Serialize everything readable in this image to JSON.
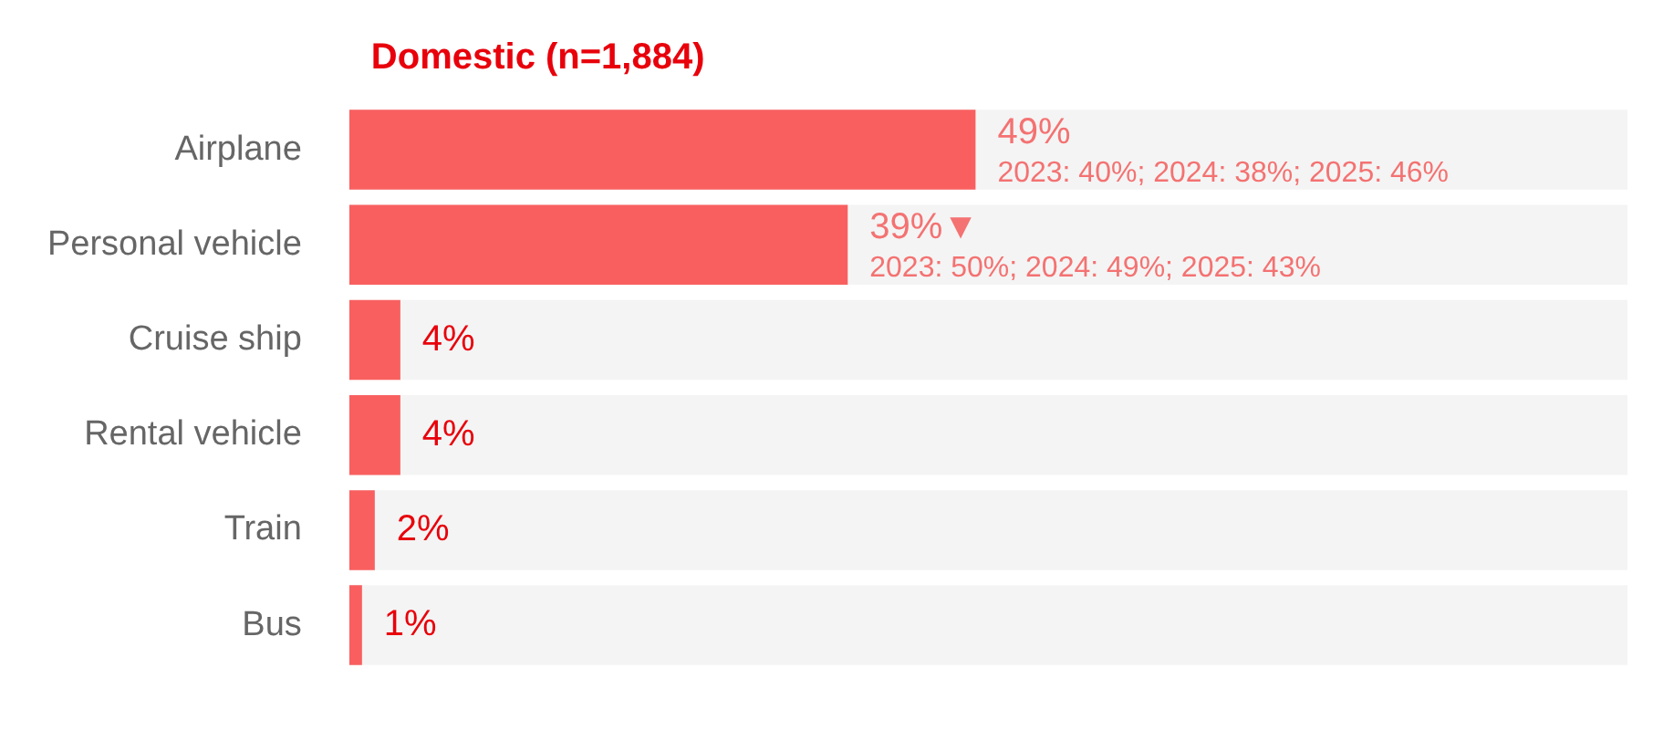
{
  "chart_data": {
    "type": "bar",
    "orientation": "horizontal",
    "title": "Domestic (n=1,884)",
    "categories": [
      "Airplane",
      "Personal vehicle",
      "Cruise ship",
      "Rental vehicle",
      "Train",
      "Bus"
    ],
    "values": [
      49,
      39,
      4,
      4,
      2,
      1
    ],
    "color": "#f95f5f",
    "xlim": [
      0,
      100
    ],
    "tick_labels": "y",
    "legend": false,
    "value_labels": [
      "49%",
      "39%▼",
      "4%",
      "4%",
      "2%",
      "1%"
    ],
    "annotations": [
      {
        "text": "2023: 40%; 2024: 38%; 2025: 46%",
        "x": 49,
        "y": "Airplane"
      },
      {
        "text": "2023: 50%; 2024: 49%; 2025: 43%",
        "x": 39,
        "y": "Personal vehicle"
      }
    ]
  }
}
